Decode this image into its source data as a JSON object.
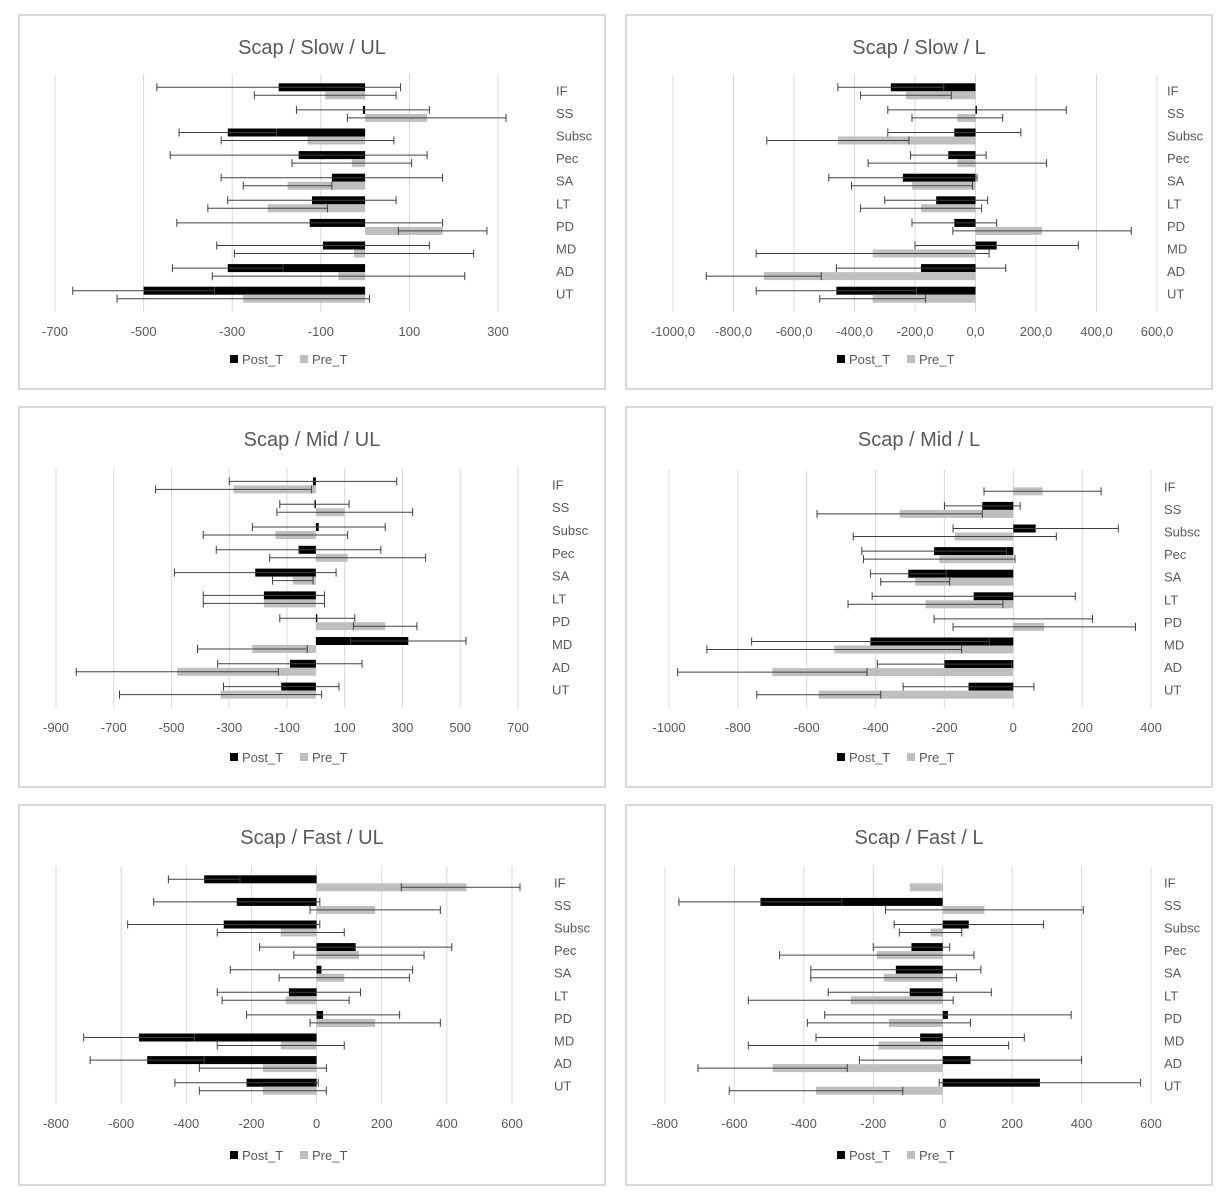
{
  "colors": {
    "post": "#000000",
    "pre": "#bfbfbf",
    "grid": "#d9d9d9",
    "text": "#595959"
  },
  "chart_data": [
    {
      "type": "bar",
      "orientation": "horizontal",
      "title": "Scap / Slow / UL",
      "categories": [
        "IF",
        "SS",
        "Subsc",
        "Pec",
        "SA",
        "LT",
        "PD",
        "MD",
        "AD",
        "UT"
      ],
      "xlim": [
        -700,
        300
      ],
      "ticks": [
        -700,
        -500,
        -300,
        -100,
        100,
        300
      ],
      "tick_labels": [
        "-700",
        "-500",
        "-300",
        "-100",
        "100",
        "300"
      ],
      "legend": [
        "Post_T",
        "Pre_T"
      ],
      "series": [
        {
          "name": "Post_T",
          "values": [
            -195,
            -5,
            -310,
            -150,
            -75,
            -120,
            -125,
            -95,
            -310,
            -500
          ],
          "errors": [
            275,
            150,
            110,
            290,
            250,
            190,
            300,
            240,
            125,
            160
          ]
        },
        {
          "name": "Pre_T",
          "values": [
            -90,
            140,
            -130,
            -30,
            -175,
            -220,
            175,
            -25,
            -60,
            -275
          ],
          "errors": [
            160,
            180,
            195,
            135,
            100,
            135,
            100,
            270,
            285,
            285
          ]
        }
      ]
    },
    {
      "type": "bar",
      "orientation": "horizontal",
      "title": "Scap / Slow / L",
      "categories": [
        "IF",
        "SS",
        "Subsc",
        "Pec",
        "SA",
        "LT",
        "PD",
        "MD",
        "AD",
        "UT"
      ],
      "xlim": [
        -1000,
        600
      ],
      "ticks": [
        -1000,
        -800,
        -600,
        -400,
        -200,
        0,
        200,
        400,
        600
      ],
      "tick_labels": [
        "-1000,0",
        "-800,0",
        "-600,0",
        "-400,0",
        "-200,0",
        "0,0",
        "200,0",
        "400,0",
        "600,0"
      ],
      "legend": [
        "Post_T",
        "Pre_T"
      ],
      "series": [
        {
          "name": "Post_T",
          "values": [
            -280,
            5,
            -70,
            -90,
            -240,
            -130,
            -70,
            70,
            -180,
            -460
          ],
          "errors": [
            175,
            295,
            220,
            125,
            245,
            170,
            140,
            270,
            280,
            265
          ]
        },
        {
          "name": "Pre_T",
          "values": [
            -230,
            -60,
            -455,
            -60,
            -210,
            -180,
            220,
            -340,
            -700,
            -340
          ],
          "errors": [
            150,
            150,
            235,
            295,
            200,
            200,
            295,
            385,
            190,
            175
          ]
        }
      ]
    },
    {
      "type": "bar",
      "orientation": "horizontal",
      "title": "Scap / Mid / UL",
      "categories": [
        "IF",
        "SS",
        "Subsc",
        "Pec",
        "SA",
        "LT",
        "PD",
        "MD",
        "AD",
        "UT"
      ],
      "xlim": [
        -900,
        700
      ],
      "ticks": [
        -900,
        -700,
        -500,
        -300,
        -100,
        100,
        300,
        500,
        700
      ],
      "tick_labels": [
        "-900",
        "-700",
        "-500",
        "-300",
        "-100",
        "100",
        "300",
        "500",
        "700"
      ],
      "legend": [
        "Post_T",
        "Pre_T"
      ],
      "series": [
        {
          "name": "Post_T",
          "values": [
            -10,
            -5,
            10,
            -60,
            -210,
            -180,
            5,
            320,
            -90,
            -120
          ],
          "errors": [
            290,
            120,
            230,
            285,
            280,
            210,
            130,
            200,
            250,
            200
          ]
        },
        {
          "name": "Pre_T",
          "values": [
            -285,
            100,
            -140,
            110,
            -80,
            -180,
            240,
            -220,
            -480,
            -330
          ],
          "errors": [
            270,
            235,
            250,
            270,
            70,
            210,
            110,
            190,
            350,
            350
          ]
        }
      ]
    },
    {
      "type": "bar",
      "orientation": "horizontal",
      "title": "Scap / Mid / L",
      "categories": [
        "IF",
        "SS",
        "Subsc",
        "Pec",
        "SA",
        "LT",
        "PD",
        "MD",
        "AD",
        "UT"
      ],
      "xlim": [
        -1000,
        400
      ],
      "ticks": [
        -1000,
        -800,
        -600,
        -400,
        -200,
        0,
        200,
        400
      ],
      "tick_labels": [
        "-1000",
        "-800",
        "-600",
        "-400",
        "-200",
        "0",
        "200",
        "400"
      ],
      "legend": [
        "Post_T",
        "Pre_T"
      ],
      "series": [
        {
          "name": "Post_T",
          "values": [
            0,
            -90,
            65,
            -230,
            -305,
            -115,
            0,
            -415,
            -200,
            -130
          ],
          "errors": [
            0,
            110,
            240,
            210,
            110,
            295,
            230,
            345,
            195,
            190
          ]
        },
        {
          "name": "Pre_T",
          "values": [
            85,
            -330,
            -170,
            -215,
            -285,
            -255,
            90,
            -520,
            -700,
            -565
          ],
          "errors": [
            170,
            240,
            295,
            220,
            100,
            225,
            265,
            370,
            275,
            180
          ]
        }
      ]
    },
    {
      "type": "bar",
      "orientation": "horizontal",
      "title": "Scap / Fast / UL",
      "categories": [
        "IF",
        "SS",
        "Subsc",
        "Pec",
        "SA",
        "LT",
        "PD",
        "MD",
        "AD",
        "UT"
      ],
      "xlim": [
        -800,
        600
      ],
      "ticks": [
        -800,
        -600,
        -400,
        -200,
        0,
        200,
        400,
        600
      ],
      "tick_labels": [
        "-800",
        "-600",
        "-400",
        "-200",
        "0",
        "200",
        "400",
        "600"
      ],
      "legend": [
        "Post_T",
        "Pre_T"
      ],
      "series": [
        {
          "name": "Post_T",
          "values": [
            -345,
            -245,
            -285,
            120,
            15,
            -85,
            20,
            -545,
            -520,
            -215
          ],
          "errors": [
            110,
            255,
            295,
            295,
            280,
            220,
            235,
            170,
            175,
            220
          ]
        },
        {
          "name": "Pre_T",
          "values": [
            460,
            180,
            -110,
            130,
            85,
            -95,
            180,
            -110,
            -165,
            -165
          ],
          "errors": [
            200,
            200,
            195,
            200,
            200,
            195,
            200,
            195,
            195,
            195
          ]
        }
      ]
    },
    {
      "type": "bar",
      "orientation": "horizontal",
      "title": "Scap / Fast / L",
      "categories": [
        "IF",
        "SS",
        "Subsc",
        "Pec",
        "SA",
        "LT",
        "PD",
        "MD",
        "AD",
        "UT"
      ],
      "xlim": [
        -800,
        600
      ],
      "ticks": [
        -800,
        -600,
        -400,
        -200,
        0,
        200,
        400,
        600
      ],
      "tick_labels": [
        "-800",
        "-600",
        "-400",
        "-200",
        "0",
        "200",
        "400",
        "600"
      ],
      "legend": [
        "Post_T",
        "Pre_T"
      ],
      "series": [
        {
          "name": "Post_T",
          "values": [
            0,
            -525,
            75,
            -90,
            -135,
            -95,
            15,
            -65,
            80,
            280
          ],
          "errors": [
            0,
            235,
            215,
            110,
            245,
            235,
            355,
            300,
            320,
            290
          ]
        },
        {
          "name": "Pre_T",
          "values": [
            -95,
            120,
            -35,
            -190,
            -170,
            -265,
            -155,
            -185,
            -490,
            -365
          ],
          "errors": [
            0,
            285,
            90,
            280,
            210,
            295,
            235,
            375,
            215,
            250
          ]
        }
      ]
    }
  ]
}
